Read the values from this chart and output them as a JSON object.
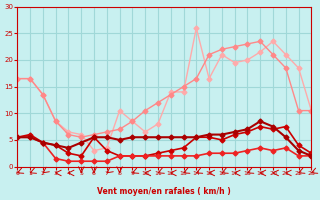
{
  "bg_color": "#c8f0f0",
  "grid_color": "#a0d8d8",
  "xlabel": "Vent moyen/en rafales ( km/h )",
  "xlabel_color": "#cc0000",
  "tick_color": "#cc0000",
  "xlim": [
    0,
    23
  ],
  "ylim": [
    0,
    30
  ],
  "yticks": [
    0,
    5,
    10,
    15,
    20,
    25,
    30
  ],
  "xticks": [
    0,
    1,
    2,
    3,
    4,
    5,
    6,
    7,
    8,
    9,
    10,
    11,
    12,
    13,
    14,
    15,
    16,
    17,
    18,
    19,
    20,
    21,
    22,
    23
  ],
  "lines": [
    {
      "x": [
        0,
        1,
        2,
        3,
        4,
        5,
        6,
        7,
        8,
        9,
        10,
        11,
        12,
        13,
        14,
        15,
        16,
        17,
        18,
        19,
        20,
        21,
        22,
        23
      ],
      "y": [
        16.5,
        16.5,
        13.5,
        8.5,
        6.5,
        6.0,
        3.0,
        3.5,
        10.5,
        8.5,
        6.5,
        8.0,
        14.0,
        14.0,
        26.0,
        16.5,
        21.0,
        19.5,
        20.0,
        21.5,
        23.5,
        21.0,
        18.5,
        10.5
      ],
      "color": "#ffaaaa",
      "lw": 1.0,
      "marker": "D",
      "ms": 2.5,
      "zorder": 2
    },
    {
      "x": [
        0,
        1,
        2,
        3,
        4,
        5,
        6,
        7,
        8,
        9,
        10,
        11,
        12,
        13,
        14,
        15,
        16,
        17,
        18,
        19,
        20,
        21,
        22,
        23
      ],
      "y": [
        16.5,
        16.5,
        13.5,
        8.5,
        6.0,
        5.5,
        6.0,
        6.5,
        7.0,
        8.5,
        10.5,
        12.0,
        13.5,
        15.0,
        16.5,
        21.0,
        22.0,
        22.5,
        23.0,
        23.5,
        21.0,
        18.5,
        10.5,
        10.5
      ],
      "color": "#ff8888",
      "lw": 1.0,
      "marker": "D",
      "ms": 2.5,
      "zorder": 2
    },
    {
      "x": [
        0,
        1,
        2,
        3,
        4,
        5,
        6,
        7,
        8,
        9,
        10,
        11,
        12,
        13,
        14,
        15,
        16,
        17,
        18,
        19,
        20,
        21,
        22,
        23
      ],
      "y": [
        5.5,
        6.0,
        4.5,
        4.0,
        2.5,
        2.0,
        5.5,
        3.0,
        2.0,
        2.0,
        2.0,
        2.5,
        3.0,
        3.5,
        5.5,
        5.5,
        5.0,
        6.0,
        6.5,
        7.5,
        7.0,
        7.5,
        4.0,
        2.5
      ],
      "color": "#cc0000",
      "lw": 1.2,
      "marker": "D",
      "ms": 2.5,
      "zorder": 3
    },
    {
      "x": [
        0,
        1,
        2,
        3,
        4,
        5,
        6,
        7,
        8,
        9,
        10,
        11,
        12,
        13,
        14,
        15,
        16,
        17,
        18,
        19,
        20,
        21,
        22,
        23
      ],
      "y": [
        5.5,
        5.5,
        4.5,
        1.5,
        1.0,
        1.0,
        1.0,
        1.0,
        2.0,
        2.0,
        2.0,
        2.0,
        2.0,
        2.0,
        2.0,
        2.5,
        2.5,
        2.5,
        3.0,
        3.5,
        3.0,
        3.5,
        2.0,
        2.0
      ],
      "color": "#ee2222",
      "lw": 1.2,
      "marker": "D",
      "ms": 2.5,
      "zorder": 3
    },
    {
      "x": [
        0,
        1,
        2,
        3,
        4,
        5,
        6,
        7,
        8,
        9,
        10,
        11,
        12,
        13,
        14,
        15,
        16,
        17,
        18,
        19,
        20,
        21,
        22,
        23
      ],
      "y": [
        5.5,
        5.5,
        4.5,
        4.0,
        3.5,
        4.5,
        5.5,
        5.5,
        5.0,
        5.5,
        5.5,
        5.5,
        5.5,
        5.5,
        5.5,
        6.0,
        6.0,
        6.5,
        7.0,
        8.5,
        7.5,
        5.5,
        3.0,
        2.0
      ],
      "color": "#aa0000",
      "lw": 1.5,
      "marker": "D",
      "ms": 2.5,
      "zorder": 4
    }
  ],
  "arrows": {
    "x": [
      0,
      1,
      2,
      3,
      4,
      5,
      6,
      7,
      8,
      9,
      10,
      11,
      12,
      13,
      14,
      15,
      16,
      17,
      18,
      19,
      20,
      21,
      22,
      23
    ],
    "angles": [
      225,
      225,
      210,
      270,
      270,
      180,
      180,
      210,
      180,
      225,
      270,
      225,
      270,
      225,
      225,
      270,
      225,
      270,
      225,
      270,
      270,
      270,
      225,
      225
    ],
    "color": "#cc0000"
  }
}
